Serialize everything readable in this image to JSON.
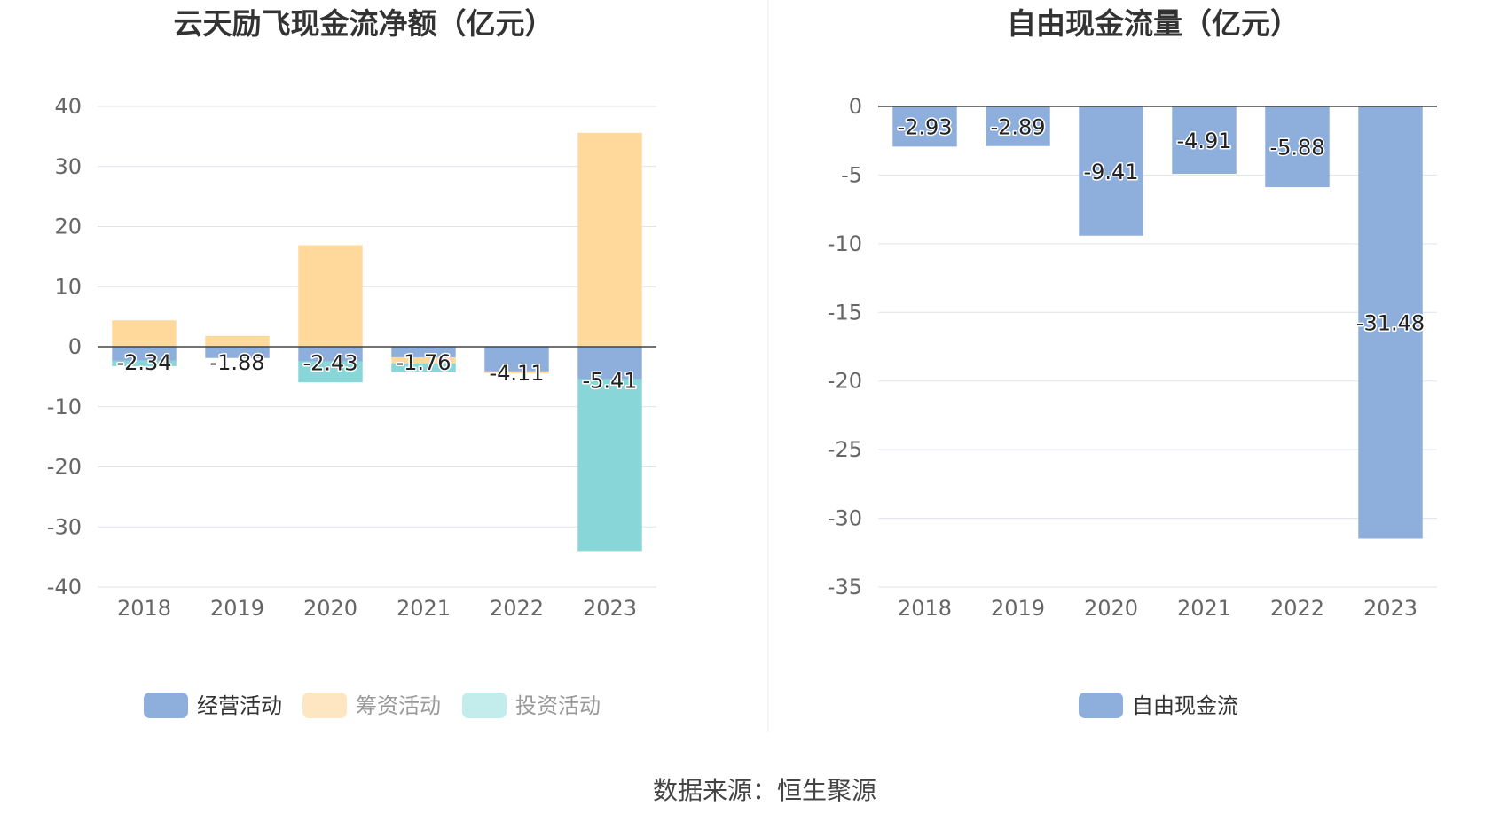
{
  "source": "数据来源：恒生聚源",
  "colors": {
    "operating": "#8eaedb",
    "financing": "#ffd99b",
    "investing": "#88d6d8"
  },
  "chart_data": [
    {
      "type": "bar",
      "stacked": true,
      "title": "云天励飞现金流净额（亿元）",
      "categories": [
        "2018",
        "2019",
        "2020",
        "2021",
        "2022",
        "2023"
      ],
      "ylim": [
        -40,
        40
      ],
      "yticks": [
        40,
        30,
        20,
        10,
        0,
        -10,
        -20,
        -30,
        -40
      ],
      "ytick_labels": [
        "40",
        "30",
        "20",
        "10",
        "0",
        "-10",
        "-20",
        "-30",
        "-40"
      ],
      "grid": true,
      "legend_position": "bottom",
      "series": [
        {
          "name": "经营活动",
          "values": [
            -2.34,
            -1.88,
            -2.43,
            -1.76,
            -4.11,
            -5.41
          ]
        },
        {
          "name": "筹资活动",
          "values": [
            4.4,
            1.8,
            16.9,
            -1.0,
            -0.3,
            35.6
          ]
        },
        {
          "name": "投资活动",
          "values": [
            -0.9,
            0.0,
            -3.5,
            -1.5,
            0.0,
            -28.6
          ]
        }
      ],
      "data_labels": [
        "-2.34",
        "-1.88",
        "-2.43",
        "-1.76",
        "-4.11",
        "-5.41"
      ]
    },
    {
      "type": "bar",
      "title": "自由现金流量（亿元）",
      "categories": [
        "2018",
        "2019",
        "2020",
        "2021",
        "2022",
        "2023"
      ],
      "ylim": [
        -35,
        0
      ],
      "yticks": [
        0,
        -5,
        -10,
        -15,
        -20,
        -25,
        -30,
        -35
      ],
      "ytick_labels": [
        "0",
        "-5",
        "-10",
        "-15",
        "-20",
        "-25",
        "-30",
        "-35"
      ],
      "grid": true,
      "legend_position": "bottom",
      "series": [
        {
          "name": "自由现金流",
          "values": [
            -2.93,
            -2.89,
            -9.41,
            -4.91,
            -5.88,
            -31.48
          ]
        }
      ],
      "data_labels": [
        "-2.93",
        "-2.89",
        "-9.41",
        "-4.91",
        "-5.88",
        "-31.48"
      ]
    }
  ]
}
